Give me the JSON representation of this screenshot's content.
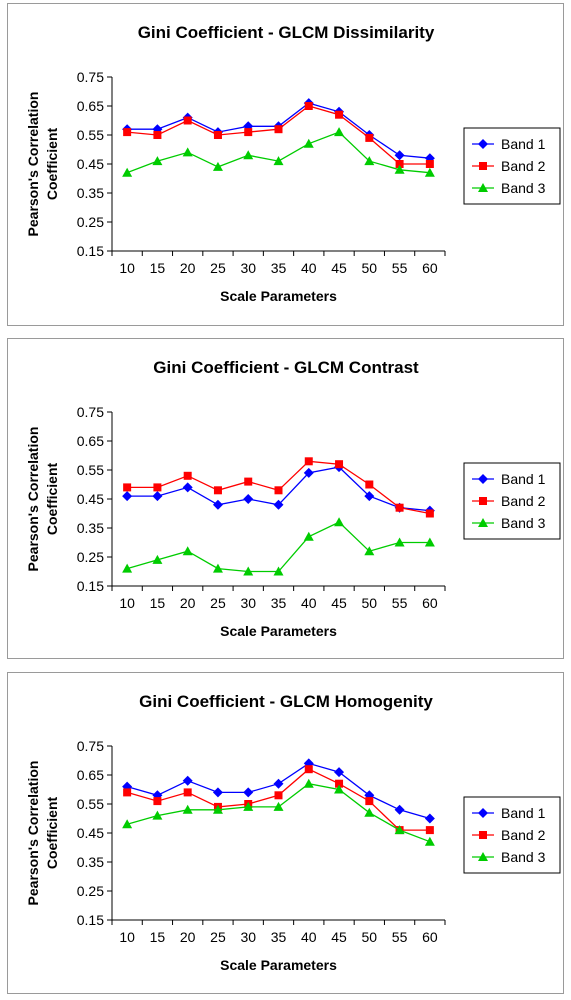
{
  "colors": {
    "band1": "#0000ff",
    "band2": "#ff0000",
    "band3": "#00cc00"
  },
  "chart_data": [
    {
      "type": "line",
      "title": "Gini Coefficient - GLCM Dissimilarity",
      "xlabel": "Scale Parameters",
      "ylabel_line1": "Pearson's Correlation",
      "ylabel_line2": "Coefficient",
      "ylim": [
        0.15,
        0.75
      ],
      "y_ticks": [
        "0.15",
        "0.25",
        "0.35",
        "0.45",
        "0.55",
        "0.65",
        "0.75"
      ],
      "categories": [
        "10",
        "15",
        "20",
        "25",
        "30",
        "35",
        "40",
        "45",
        "50",
        "55",
        "60"
      ],
      "legend_position": "right",
      "series": [
        {
          "name": "Band 1",
          "marker": "diamond",
          "values": [
            0.57,
            0.57,
            0.61,
            0.56,
            0.58,
            0.58,
            0.66,
            0.63,
            0.55,
            0.48,
            0.47
          ]
        },
        {
          "name": "Band 2",
          "marker": "square",
          "values": [
            0.56,
            0.55,
            0.6,
            0.55,
            0.56,
            0.57,
            0.65,
            0.62,
            0.54,
            0.45,
            0.45
          ]
        },
        {
          "name": "Band 3",
          "marker": "triangle",
          "values": [
            0.42,
            0.46,
            0.49,
            0.44,
            0.48,
            0.46,
            0.52,
            0.56,
            0.46,
            0.43,
            0.42
          ]
        }
      ]
    },
    {
      "type": "line",
      "title": "Gini Coefficient - GLCM Contrast",
      "xlabel": "Scale Parameters",
      "ylabel_line1": "Pearson's Correlation",
      "ylabel_line2": "Coefficient",
      "ylim": [
        0.15,
        0.75
      ],
      "y_ticks": [
        "0.15",
        "0.25",
        "0.35",
        "0.45",
        "0.55",
        "0.65",
        "0.75"
      ],
      "categories": [
        "10",
        "15",
        "20",
        "25",
        "30",
        "35",
        "40",
        "45",
        "50",
        "55",
        "60"
      ],
      "legend_position": "right",
      "series": [
        {
          "name": "Band 1",
          "marker": "diamond",
          "values": [
            0.46,
            0.46,
            0.49,
            0.43,
            0.45,
            0.43,
            0.54,
            0.56,
            0.46,
            0.42,
            0.41
          ]
        },
        {
          "name": "Band 2",
          "marker": "square",
          "values": [
            0.49,
            0.49,
            0.53,
            0.48,
            0.51,
            0.48,
            0.58,
            0.57,
            0.5,
            0.42,
            0.4
          ]
        },
        {
          "name": "Band 3",
          "marker": "triangle",
          "values": [
            0.21,
            0.24,
            0.27,
            0.21,
            0.2,
            0.2,
            0.32,
            0.37,
            0.27,
            0.3,
            0.3
          ]
        }
      ]
    },
    {
      "type": "line",
      "title": "Gini Coefficient - GLCM Homogenity",
      "xlabel": "Scale Parameters",
      "ylabel_line1": "Pearson's Correlation",
      "ylabel_line2": "Coefficient",
      "ylim": [
        0.15,
        0.75
      ],
      "y_ticks": [
        "0.15",
        "0.25",
        "0.35",
        "0.45",
        "0.55",
        "0.65",
        "0.75"
      ],
      "categories": [
        "10",
        "15",
        "20",
        "25",
        "30",
        "35",
        "40",
        "45",
        "50",
        "55",
        "60"
      ],
      "legend_position": "right",
      "series": [
        {
          "name": "Band 1",
          "marker": "diamond",
          "values": [
            0.61,
            0.58,
            0.63,
            0.59,
            0.59,
            0.62,
            0.69,
            0.66,
            0.58,
            0.53,
            0.5
          ]
        },
        {
          "name": "Band 2",
          "marker": "square",
          "values": [
            0.59,
            0.56,
            0.59,
            0.54,
            0.55,
            0.58,
            0.67,
            0.62,
            0.56,
            0.46,
            0.46
          ]
        },
        {
          "name": "Band 3",
          "marker": "triangle",
          "values": [
            0.48,
            0.51,
            0.53,
            0.53,
            0.54,
            0.54,
            0.62,
            0.6,
            0.52,
            0.46,
            0.42
          ]
        }
      ]
    }
  ]
}
